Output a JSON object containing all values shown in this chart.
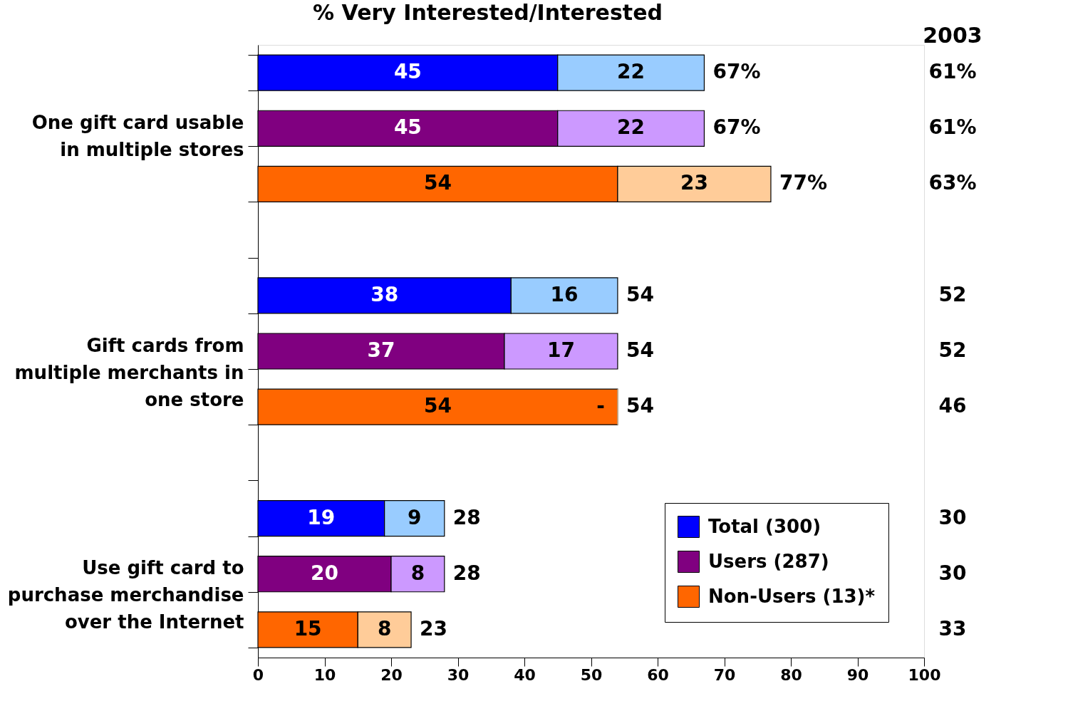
{
  "chart_data": {
    "type": "bar",
    "orientation": "horizontal",
    "stacked": true,
    "title": "% Very Interested/Interested",
    "categories": [
      null,
      "One gift card usable\nin multiple stores",
      null,
      null,
      null,
      "Gift cards from\nmultiple merchants in\none store",
      null,
      null,
      null,
      "Use gift card to\npurchase merchandise\nover the Internet",
      null
    ],
    "series": [
      {
        "name": "Total (300)",
        "color": "#0000ff",
        "values": [
          45,
          null,
          null,
          null,
          38,
          null,
          null,
          null,
          19,
          null,
          null
        ],
        "value_labels": [
          "45",
          null,
          null,
          null,
          "38",
          null,
          null,
          null,
          "19",
          null,
          null
        ]
      },
      {
        "color": "#99ccff",
        "values": [
          22,
          null,
          null,
          null,
          16,
          null,
          null,
          null,
          9,
          null,
          null
        ],
        "value_labels": [
          "22",
          null,
          null,
          null,
          "16",
          null,
          null,
          null,
          "9",
          null,
          null
        ]
      },
      {
        "name": "Users (287)",
        "color": "#800080",
        "values": [
          null,
          45,
          null,
          null,
          null,
          37,
          null,
          null,
          null,
          20,
          null
        ],
        "value_labels": [
          null,
          "45",
          null,
          null,
          null,
          "37",
          null,
          null,
          null,
          "20",
          null
        ]
      },
      {
        "color": "#cc99ff",
        "values": [
          null,
          22,
          null,
          null,
          null,
          17,
          null,
          null,
          null,
          8,
          null
        ],
        "value_labels": [
          null,
          "22",
          null,
          null,
          null,
          "17",
          null,
          null,
          null,
          "8",
          null
        ]
      },
      {
        "name": "Non-Users (13)*",
        "color": "#ff6600",
        "values": [
          null,
          null,
          54,
          null,
          null,
          null,
          54,
          null,
          null,
          null,
          15
        ],
        "value_labels": [
          null,
          null,
          "54",
          null,
          null,
          null,
          "54",
          null,
          null,
          null,
          "15"
        ]
      },
      {
        "color": "#ffcc99",
        "values": [
          null,
          null,
          23,
          null,
          null,
          null,
          0,
          null,
          null,
          null,
          8
        ],
        "value_labels": [
          null,
          null,
          "23",
          null,
          null,
          null,
          "-",
          null,
          null,
          null,
          "8"
        ]
      }
    ],
    "totals": [
      "67%",
      "67%",
      "77%",
      null,
      "54",
      "54",
      "54",
      null,
      "28",
      "28",
      "23"
    ],
    "annotations": [
      "2003",
      "61%",
      "61%",
      "63%",
      "52",
      "52",
      "46",
      "30",
      "30",
      "33"
    ],
    "xlim": [
      0,
      100
    ],
    "xticks": [
      0,
      10,
      20,
      30,
      40,
      50,
      60,
      70,
      80,
      90,
      100
    ],
    "grid": false,
    "legend": "bottom right"
  }
}
